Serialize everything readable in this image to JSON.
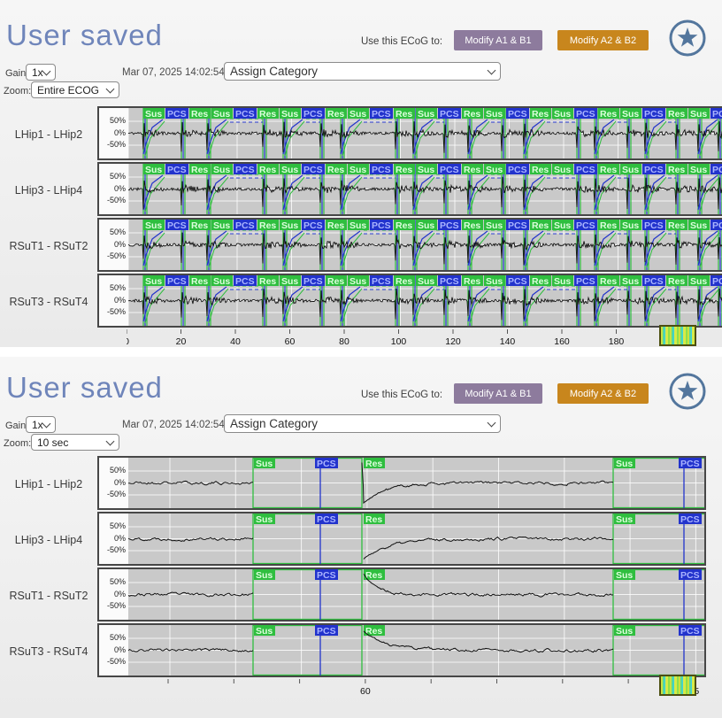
{
  "panels": [
    {
      "title": "User saved",
      "use_ecog_label": "Use this ECoG to:",
      "buttons": [
        {
          "label": "Modify A1 & B1"
        },
        {
          "label": "Modify A2 & B2"
        }
      ],
      "gain_label": "Gain:",
      "gain_value": "1x",
      "timestamp": "Mar 07, 2025 14:02:54",
      "category_value": "Assign Category",
      "zoom_label": "Zoom:",
      "zoom_value": "Entire ECOG",
      "axis_tick_labels": [
        "0",
        "20",
        "40",
        "60",
        "80",
        "100",
        "120",
        "140",
        "160",
        "180"
      ]
    },
    {
      "title": "User saved",
      "use_ecog_label": "Use this ECoG to:",
      "buttons": [
        {
          "label": "Modify A1 & B1"
        },
        {
          "label": "Modify A2 & B2"
        }
      ],
      "gain_label": "Gain:",
      "gain_value": "1x",
      "timestamp": "Mar 07, 2025 14:02:54",
      "category_value": "Assign Category",
      "zoom_label": "Zoom:",
      "zoom_value": "10 sec",
      "axis_tick_labels": [
        "60",
        "65"
      ]
    }
  ],
  "channels": [
    "LHip1 - LHip2",
    "LHip3 - LHip4",
    "RSuT1 - RSuT2",
    "RSuT3 - RSuT4"
  ],
  "y_axis_labels": [
    "50%",
    "0%",
    "-50%"
  ],
  "marker_labels": {
    "sus": "Sus",
    "pcs": "PCS",
    "res": "Res"
  },
  "icons": {
    "star": "star-in-circle",
    "thumbnail": "ecog-activity-thumbnail"
  },
  "colors": {
    "title": "#6f85ba",
    "modify_a1b1_bg": "#8d7b9d",
    "modify_a2b2_bg": "#c8861d",
    "star": "#53769d",
    "sus_res_marker": "#2fbe3f",
    "pcs_marker": "#2233cc",
    "plot_background": "#c9c9c9",
    "waveform": "#101010"
  }
}
